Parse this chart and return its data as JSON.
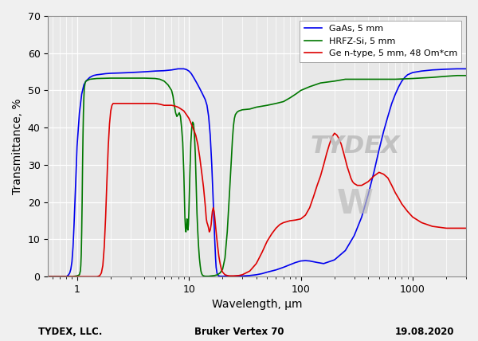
{
  "xlabel": "Wavelength, μm",
  "ylabel": "Transmittance, %",
  "xlim": [
    0.55,
    3000
  ],
  "ylim": [
    0,
    70
  ],
  "yticks": [
    0,
    10,
    20,
    30,
    40,
    50,
    60,
    70
  ],
  "xticks": [
    1,
    10,
    100,
    1000
  ],
  "legend": [
    {
      "label": "GaAs, 5 mm",
      "color": "#0000EE"
    },
    {
      "label": "HRFZ-Si, 5 mm",
      "color": "#007700"
    },
    {
      "label": "Ge n-type, 5 mm, 48 Om*cm",
      "color": "#DD0000"
    }
  ],
  "footer_left": "TYDEX, LLC.",
  "footer_center": "Bruker Vertex 70",
  "footer_right": "19.08.2020",
  "gaas_data": [
    [
      0.55,
      0
    ],
    [
      0.8,
      0
    ],
    [
      0.82,
      0.2
    ],
    [
      0.84,
      0.5
    ],
    [
      0.86,
      1
    ],
    [
      0.88,
      2
    ],
    [
      0.9,
      4
    ],
    [
      0.92,
      8
    ],
    [
      0.94,
      14
    ],
    [
      0.96,
      21
    ],
    [
      0.98,
      28
    ],
    [
      1.0,
      35
    ],
    [
      1.05,
      44
    ],
    [
      1.1,
      49
    ],
    [
      1.15,
      51.5
    ],
    [
      1.2,
      52.5
    ],
    [
      1.3,
      53.5
    ],
    [
      1.4,
      54.0
    ],
    [
      1.5,
      54.2
    ],
    [
      1.6,
      54.3
    ],
    [
      1.8,
      54.5
    ],
    [
      2.0,
      54.6
    ],
    [
      2.5,
      54.7
    ],
    [
      3.0,
      54.8
    ],
    [
      4.0,
      55.0
    ],
    [
      5.0,
      55.2
    ],
    [
      6.0,
      55.3
    ],
    [
      7.0,
      55.5
    ],
    [
      8.0,
      55.8
    ],
    [
      9.0,
      55.8
    ],
    [
      9.5,
      55.6
    ],
    [
      10.0,
      55.2
    ],
    [
      10.5,
      54.5
    ],
    [
      11.0,
      53.5
    ],
    [
      11.5,
      52.5
    ],
    [
      12.0,
      51.5
    ],
    [
      12.5,
      50.5
    ],
    [
      13.0,
      49.5
    ],
    [
      13.5,
      48.5
    ],
    [
      14.0,
      47.5
    ],
    [
      14.5,
      46.0
    ],
    [
      15.0,
      43.0
    ],
    [
      15.5,
      38.0
    ],
    [
      16.0,
      30.0
    ],
    [
      16.5,
      20.0
    ],
    [
      17.0,
      10.0
    ],
    [
      17.3,
      5.0
    ],
    [
      17.5,
      2.5
    ],
    [
      17.8,
      1.0
    ],
    [
      18.0,
      0.5
    ],
    [
      18.5,
      0.2
    ],
    [
      19.0,
      0.1
    ],
    [
      20.0,
      0.1
    ],
    [
      25.0,
      0.1
    ],
    [
      30.0,
      0.15
    ],
    [
      35.0,
      0.3
    ],
    [
      40.0,
      0.5
    ],
    [
      45.0,
      0.8
    ],
    [
      50.0,
      1.2
    ],
    [
      60.0,
      1.8
    ],
    [
      70.0,
      2.5
    ],
    [
      80.0,
      3.2
    ],
    [
      90.0,
      3.8
    ],
    [
      100.0,
      4.2
    ],
    [
      110.0,
      4.3
    ],
    [
      120.0,
      4.2
    ],
    [
      140.0,
      3.8
    ],
    [
      160.0,
      3.5
    ],
    [
      200.0,
      4.5
    ],
    [
      250.0,
      7.0
    ],
    [
      300.0,
      11.0
    ],
    [
      350.0,
      16.0
    ],
    [
      400.0,
      22.0
    ],
    [
      450.0,
      28.0
    ],
    [
      500.0,
      34.0
    ],
    [
      550.0,
      39.0
    ],
    [
      600.0,
      43.0
    ],
    [
      650.0,
      46.5
    ],
    [
      700.0,
      49.0
    ],
    [
      750.0,
      51.0
    ],
    [
      800.0,
      52.5
    ],
    [
      850.0,
      53.5
    ],
    [
      900.0,
      54.2
    ],
    [
      1000.0,
      54.8
    ],
    [
      1200.0,
      55.2
    ],
    [
      1500.0,
      55.5
    ],
    [
      2000.0,
      55.7
    ],
    [
      2500.0,
      55.8
    ],
    [
      3000.0,
      55.8
    ]
  ],
  "si_data": [
    [
      0.55,
      0
    ],
    [
      0.9,
      0
    ],
    [
      0.95,
      0.1
    ],
    [
      1.0,
      0.2
    ],
    [
      1.05,
      0.5
    ],
    [
      1.07,
      1.5
    ],
    [
      1.08,
      3
    ],
    [
      1.09,
      6
    ],
    [
      1.1,
      12
    ],
    [
      1.11,
      20
    ],
    [
      1.12,
      30
    ],
    [
      1.13,
      38
    ],
    [
      1.14,
      44
    ],
    [
      1.15,
      48
    ],
    [
      1.16,
      50.5
    ],
    [
      1.18,
      52
    ],
    [
      1.2,
      52.5
    ],
    [
      1.3,
      53
    ],
    [
      1.5,
      53.2
    ],
    [
      2.0,
      53.3
    ],
    [
      3.0,
      53.3
    ],
    [
      4.0,
      53.3
    ],
    [
      5.0,
      53.2
    ],
    [
      5.5,
      53.0
    ],
    [
      6.0,
      52.5
    ],
    [
      6.5,
      51.5
    ],
    [
      7.0,
      50.0
    ],
    [
      7.2,
      48.5
    ],
    [
      7.4,
      46.0
    ],
    [
      7.6,
      44.0
    ],
    [
      7.8,
      43.0
    ],
    [
      8.0,
      43.5
    ],
    [
      8.2,
      44.0
    ],
    [
      8.4,
      43.0
    ],
    [
      8.6,
      40.0
    ],
    [
      8.8,
      36.0
    ],
    [
      9.0,
      28.0
    ],
    [
      9.1,
      22.0
    ],
    [
      9.2,
      16.0
    ],
    [
      9.3,
      13.0
    ],
    [
      9.4,
      12.0
    ],
    [
      9.5,
      13.5
    ],
    [
      9.6,
      15.5
    ],
    [
      9.7,
      13.0
    ],
    [
      9.8,
      12.5
    ],
    [
      9.9,
      14.0
    ],
    [
      10.0,
      18.0
    ],
    [
      10.2,
      28.0
    ],
    [
      10.4,
      36.0
    ],
    [
      10.6,
      40.0
    ],
    [
      10.8,
      41.5
    ],
    [
      11.0,
      41.0
    ],
    [
      11.2,
      38.0
    ],
    [
      11.4,
      33.0
    ],
    [
      11.6,
      25.0
    ],
    [
      11.8,
      17.0
    ],
    [
      12.0,
      12.0
    ],
    [
      12.2,
      8.0
    ],
    [
      12.4,
      5.0
    ],
    [
      12.6,
      3.0
    ],
    [
      12.8,
      1.5
    ],
    [
      13.0,
      0.8
    ],
    [
      13.2,
      0.4
    ],
    [
      13.5,
      0.2
    ],
    [
      14.0,
      0.1
    ],
    [
      14.5,
      0.1
    ],
    [
      15.0,
      0.1
    ],
    [
      16.0,
      0.2
    ],
    [
      17.0,
      0.3
    ],
    [
      18.0,
      0.5
    ],
    [
      19.0,
      1.0
    ],
    [
      20.0,
      2.0
    ],
    [
      21.0,
      5.0
    ],
    [
      22.0,
      12.0
    ],
    [
      23.0,
      22.0
    ],
    [
      24.0,
      32.0
    ],
    [
      24.5,
      37.0
    ],
    [
      25.0,
      40.5
    ],
    [
      25.5,
      42.5
    ],
    [
      26.0,
      43.5
    ],
    [
      27.0,
      44.2
    ],
    [
      28.0,
      44.5
    ],
    [
      30.0,
      44.8
    ],
    [
      35.0,
      45.0
    ],
    [
      40.0,
      45.5
    ],
    [
      50.0,
      46.0
    ],
    [
      60.0,
      46.5
    ],
    [
      70.0,
      47.0
    ],
    [
      80.0,
      48.0
    ],
    [
      90.0,
      49.0
    ],
    [
      100.0,
      50.0
    ],
    [
      120.0,
      51.0
    ],
    [
      150.0,
      52.0
    ],
    [
      200.0,
      52.5
    ],
    [
      250.0,
      53.0
    ],
    [
      300.0,
      53.0
    ],
    [
      400.0,
      53.0
    ],
    [
      500.0,
      53.0
    ],
    [
      700.0,
      53.0
    ],
    [
      1000.0,
      53.2
    ],
    [
      1500.0,
      53.5
    ],
    [
      2000.0,
      53.8
    ],
    [
      2500.0,
      54.0
    ],
    [
      3000.0,
      54.0
    ]
  ],
  "ge_data": [
    [
      0.55,
      0
    ],
    [
      1.5,
      0
    ],
    [
      1.55,
      0.1
    ],
    [
      1.6,
      0.3
    ],
    [
      1.65,
      1.0
    ],
    [
      1.7,
      3.0
    ],
    [
      1.75,
      8.0
    ],
    [
      1.8,
      16.0
    ],
    [
      1.85,
      26.0
    ],
    [
      1.9,
      35.0
    ],
    [
      1.95,
      41.0
    ],
    [
      2.0,
      44.5
    ],
    [
      2.05,
      46.0
    ],
    [
      2.1,
      46.5
    ],
    [
      2.2,
      46.5
    ],
    [
      2.5,
      46.5
    ],
    [
      3.0,
      46.5
    ],
    [
      4.0,
      46.5
    ],
    [
      5.0,
      46.5
    ],
    [
      5.5,
      46.3
    ],
    [
      6.0,
      46.0
    ],
    [
      6.5,
      46.0
    ],
    [
      7.0,
      46.0
    ],
    [
      7.5,
      45.8
    ],
    [
      8.0,
      45.5
    ],
    [
      8.5,
      45.0
    ],
    [
      9.0,
      44.5
    ],
    [
      9.5,
      43.5
    ],
    [
      10.0,
      42.5
    ],
    [
      10.5,
      41.0
    ],
    [
      11.0,
      39.5
    ],
    [
      11.5,
      38.0
    ],
    [
      12.0,
      35.5
    ],
    [
      12.5,
      32.0
    ],
    [
      13.0,
      28.0
    ],
    [
      13.5,
      24.0
    ],
    [
      14.0,
      19.0
    ],
    [
      14.3,
      15.5
    ],
    [
      14.5,
      14.5
    ],
    [
      14.7,
      14.0
    ],
    [
      15.0,
      13.0
    ],
    [
      15.2,
      12.0
    ],
    [
      15.5,
      12.5
    ],
    [
      15.8,
      14.0
    ],
    [
      16.0,
      16.0
    ],
    [
      16.2,
      17.5
    ],
    [
      16.5,
      18.5
    ],
    [
      16.8,
      17.5
    ],
    [
      17.0,
      16.0
    ],
    [
      17.5,
      12.0
    ],
    [
      18.0,
      8.5
    ],
    [
      18.5,
      5.5
    ],
    [
      19.0,
      3.5
    ],
    [
      19.5,
      2.0
    ],
    [
      20.0,
      1.2
    ],
    [
      21.0,
      0.5
    ],
    [
      22.0,
      0.3
    ],
    [
      23.0,
      0.2
    ],
    [
      25.0,
      0.2
    ],
    [
      28.0,
      0.3
    ],
    [
      30.0,
      0.5
    ],
    [
      35.0,
      1.5
    ],
    [
      40.0,
      3.5
    ],
    [
      45.0,
      6.5
    ],
    [
      50.0,
      9.5
    ],
    [
      55.0,
      11.5
    ],
    [
      60.0,
      13.0
    ],
    [
      65.0,
      14.0
    ],
    [
      70.0,
      14.5
    ],
    [
      80.0,
      15.0
    ],
    [
      90.0,
      15.2
    ],
    [
      100.0,
      15.5
    ],
    [
      110.0,
      16.5
    ],
    [
      120.0,
      18.5
    ],
    [
      130.0,
      21.5
    ],
    [
      140.0,
      24.5
    ],
    [
      150.0,
      27.0
    ],
    [
      160.0,
      30.0
    ],
    [
      170.0,
      33.0
    ],
    [
      180.0,
      35.5
    ],
    [
      190.0,
      37.5
    ],
    [
      200.0,
      38.5
    ],
    [
      210.0,
      38.0
    ],
    [
      220.0,
      37.0
    ],
    [
      230.0,
      35.5
    ],
    [
      240.0,
      33.5
    ],
    [
      250.0,
      31.5
    ],
    [
      260.0,
      29.5
    ],
    [
      270.0,
      28.0
    ],
    [
      280.0,
      26.5
    ],
    [
      290.0,
      25.5
    ],
    [
      300.0,
      25.0
    ],
    [
      320.0,
      24.5
    ],
    [
      350.0,
      24.5
    ],
    [
      400.0,
      25.5
    ],
    [
      450.0,
      27.0
    ],
    [
      500.0,
      28.0
    ],
    [
      550.0,
      27.5
    ],
    [
      600.0,
      26.5
    ],
    [
      650.0,
      24.5
    ],
    [
      700.0,
      22.5
    ],
    [
      750.0,
      21.0
    ],
    [
      800.0,
      19.5
    ],
    [
      900.0,
      17.5
    ],
    [
      1000.0,
      16.0
    ],
    [
      1200.0,
      14.5
    ],
    [
      1500.0,
      13.5
    ],
    [
      2000.0,
      13.0
    ],
    [
      2500.0,
      13.0
    ],
    [
      3000.0,
      13.0
    ]
  ]
}
